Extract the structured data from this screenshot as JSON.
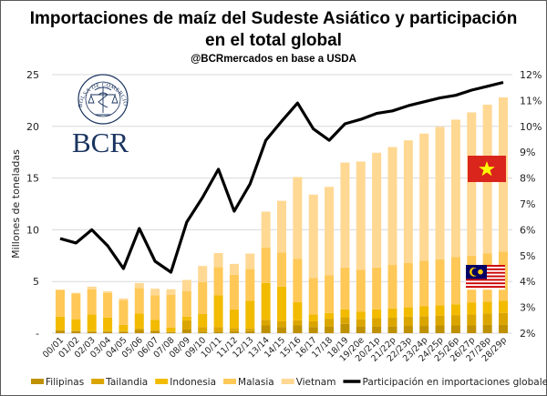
{
  "chart_data": {
    "type": "bar",
    "subtype": "stacked bar + line (secondary axis)",
    "title": "Importaciones de maíz del Sudeste Asiático y participación en el total global",
    "title_lines": [
      "Importaciones de maíz del Sudeste Asiático y participación",
      "en el total global"
    ],
    "subtitle": "@BCRmercados  en base a USDA",
    "ylabel": "Millones de toneladas",
    "y2label": "",
    "ylim": [
      0,
      25
    ],
    "y2lim": [
      0.02,
      0.12
    ],
    "y_ticks": [
      "-",
      "5",
      "10",
      "15",
      "20",
      "25"
    ],
    "y2_ticks": [
      "2%",
      "3%",
      "4%",
      "5%",
      "6%",
      "7%",
      "8%",
      "9%",
      "10%",
      "11%",
      "12%"
    ],
    "grid": true,
    "legend_position": "bottom",
    "categories": [
      "00/01",
      "01/02",
      "02/03",
      "03/04",
      "04/05",
      "05/06",
      "06/07",
      "07/08",
      "08/09",
      "09/10",
      "10/11",
      "11/12",
      "12/13",
      "13/14",
      "14/15",
      "15/16",
      "16/17",
      "17/18",
      "18/19",
      "19/20e",
      "20/21p",
      "21/22p",
      "22/23p",
      "23/24p",
      "24/25p",
      "25/26p",
      "26/27p",
      "27/28p",
      "28/29p"
    ],
    "series": [
      {
        "name": "Filipinas",
        "type": "bar",
        "color": "#BF9000",
        "values": [
          0.25,
          0.2,
          0.15,
          0.15,
          0.15,
          0.3,
          0.2,
          0.1,
          0.35,
          0.15,
          0.15,
          0.2,
          0.2,
          0.75,
          0.6,
          0.75,
          0.6,
          0.65,
          0.9,
          0.65,
          0.65,
          0.65,
          0.7,
          0.7,
          0.75,
          0.75,
          0.75,
          0.8,
          0.8
        ]
      },
      {
        "name": "Tailandia",
        "type": "bar",
        "color": "#DBA500",
        "values": [
          0.05,
          0.05,
          0.05,
          0.05,
          0.05,
          0.15,
          0.1,
          0.05,
          0.9,
          0.45,
          0.45,
          0.3,
          0.25,
          0.55,
          0.55,
          0.5,
          0.55,
          0.75,
          0.65,
          0.7,
          0.8,
          0.85,
          0.9,
          0.95,
          0.95,
          1.0,
          1.05,
          1.1,
          1.15
        ]
      },
      {
        "name": "Indonesia",
        "type": "bar",
        "color": "#F2BB00",
        "values": [
          1.3,
          1.1,
          1.6,
          1.3,
          0.6,
          1.45,
          1.0,
          0.4,
          0.35,
          1.25,
          3.05,
          1.8,
          2.7,
          3.55,
          3.35,
          1.75,
          0.65,
          0.55,
          0.75,
          0.75,
          0.85,
          0.9,
          0.9,
          0.95,
          1.0,
          1.05,
          1.15,
          1.15,
          1.2
        ]
      },
      {
        "name": "Malasia",
        "type": "bar",
        "color": "#FFC857",
        "values": [
          2.6,
          2.5,
          2.45,
          2.4,
          2.4,
          2.45,
          2.35,
          3.15,
          2.45,
          3.1,
          2.75,
          3.35,
          3.05,
          3.45,
          3.3,
          4.2,
          3.55,
          3.65,
          4.05,
          4.05,
          4.05,
          4.2,
          4.3,
          4.4,
          4.45,
          4.55,
          4.55,
          4.65,
          4.75
        ]
      },
      {
        "name": "Vietnam",
        "type": "bar",
        "color": "#FFD893",
        "values": [
          0.0,
          0.05,
          0.25,
          0.15,
          0.15,
          0.5,
          0.65,
          0.55,
          1.1,
          1.55,
          1.35,
          1.05,
          1.5,
          3.45,
          5.0,
          7.9,
          8.05,
          8.55,
          10.15,
          10.45,
          11.1,
          11.4,
          11.85,
          12.3,
          12.8,
          13.3,
          13.85,
          14.4,
          14.9
        ]
      },
      {
        "name": "Participación en importaciones globales",
        "type": "line",
        "axis": "secondary",
        "color": "#000000",
        "values": [
          0.0566,
          0.0549,
          0.06,
          0.0538,
          0.045,
          0.0605,
          0.0478,
          0.0436,
          0.063,
          0.0725,
          0.0834,
          0.0672,
          0.0777,
          0.0946,
          0.102,
          0.109,
          0.099,
          0.0946,
          0.101,
          0.1027,
          0.105,
          0.106,
          0.108,
          0.1095,
          0.111,
          0.112,
          0.114,
          0.1155,
          0.117
        ]
      }
    ]
  },
  "logo": {
    "ring_text": "BOLSA DE COMERCIO DE ROSARIO",
    "wordmark": "BCR"
  },
  "flags": [
    "vietnam-flag",
    "malaysia-flag"
  ]
}
